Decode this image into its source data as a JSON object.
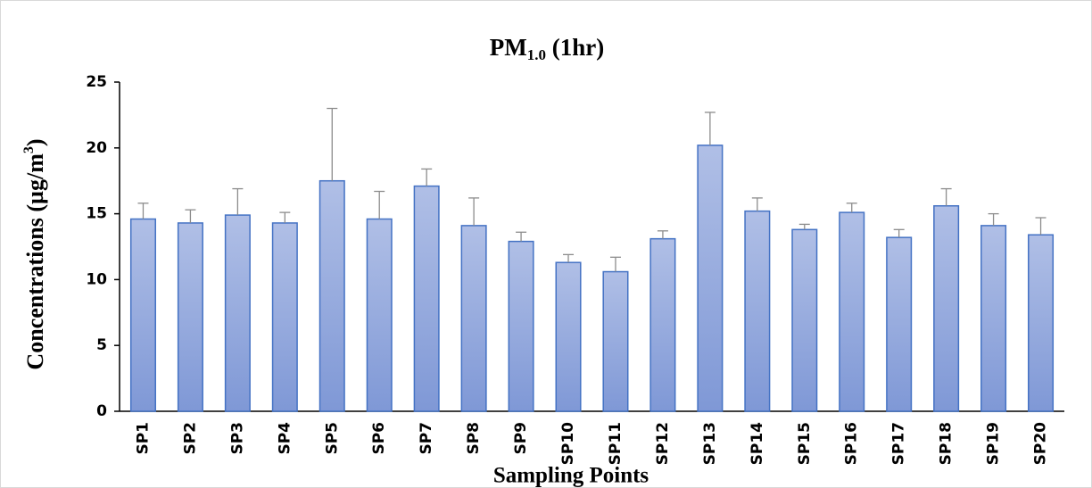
{
  "chart_data": {
    "type": "bar",
    "title": {
      "main": "PM",
      "sub": "1.0",
      "suffix": " (1hr)"
    },
    "y_label": {
      "main": "Concentrations (µg/m",
      "sup": "3",
      "suffix": ")"
    },
    "x_label": "Sampling Points",
    "categories": [
      "SP1",
      "SP2",
      "SP3",
      "SP4",
      "SP5",
      "SP6",
      "SP7",
      "SP8",
      "SP9",
      "SP10",
      "SP11",
      "SP12",
      "SP13",
      "SP14",
      "SP15",
      "SP16",
      "SP17",
      "SP18",
      "SP19",
      "SP20"
    ],
    "values": [
      14.6,
      14.3,
      14.9,
      14.3,
      17.5,
      14.6,
      17.1,
      14.1,
      12.9,
      11.3,
      10.6,
      13.1,
      20.2,
      15.2,
      13.8,
      15.1,
      13.2,
      15.6,
      14.1,
      13.4
    ],
    "errors": [
      1.2,
      1.0,
      2.0,
      0.8,
      5.5,
      2.1,
      1.3,
      2.1,
      0.7,
      0.6,
      1.1,
      0.6,
      2.5,
      1.0,
      0.4,
      0.7,
      0.6,
      1.3,
      0.9,
      1.3
    ],
    "color": "#4472c4",
    "error_color": "#8c8c8c",
    "ylim": [
      0,
      25
    ],
    "yticks": [
      0,
      5,
      10,
      15,
      20,
      25
    ]
  }
}
